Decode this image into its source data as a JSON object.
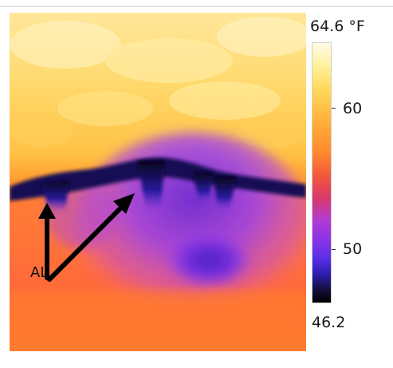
{
  "thermal_image": {
    "scale": {
      "max_label": "64.6 °F",
      "tick_upper": "60",
      "tick_lower": "50",
      "min_label": "46.2",
      "max_value": 64.6,
      "min_value": 46.2
    },
    "annotation": {
      "text": "AL"
    },
    "colors": {
      "hot": "#ffe98a",
      "warm": "#ff8a2e",
      "cool": "#9a3ff0",
      "cold": "#12104a"
    }
  }
}
